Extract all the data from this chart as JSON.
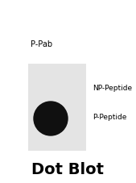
{
  "title": "Dot Blot",
  "title_fontsize": 14,
  "title_fontweight": "bold",
  "col_label": "P-Pab",
  "col_label_fontsize": 7,
  "row_labels": [
    "NP-Peptide",
    "P-Peptide"
  ],
  "row_label_fontsize": 6.5,
  "membrane_color": "#e4e4e4",
  "dot_color": "#101010",
  "background_color": "#ffffff",
  "fig_width": 1.69,
  "fig_height": 2.28,
  "dpi": 100
}
